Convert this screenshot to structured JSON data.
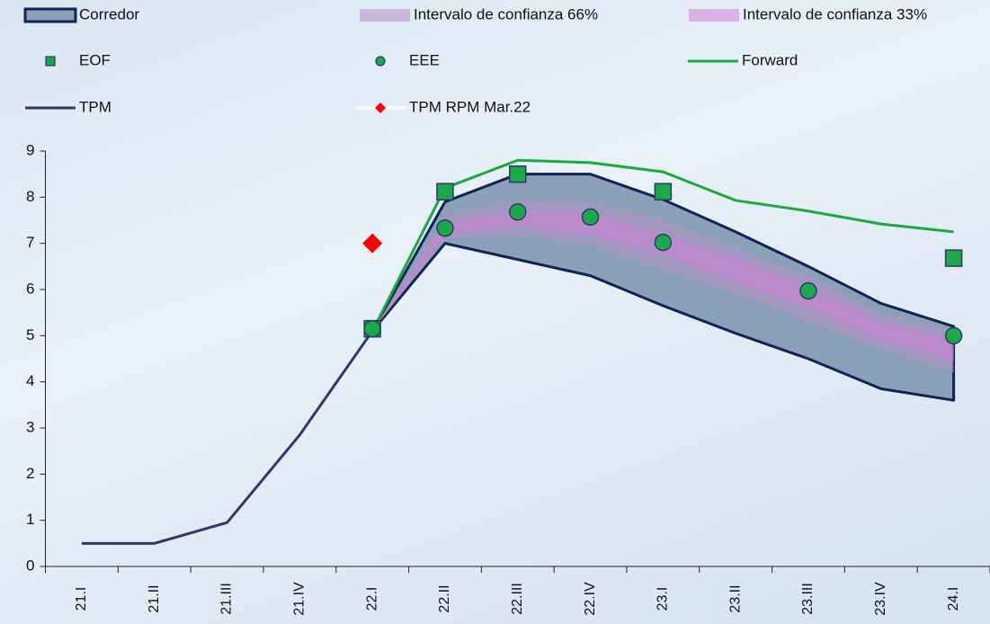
{
  "chart_data": {
    "type": "line",
    "categories": [
      "21.I",
      "21.II",
      "21.III",
      "21.IV",
      "22.I",
      "22.II",
      "22.III",
      "22.IV",
      "23.I",
      "23.II",
      "23.III",
      "23.IV",
      "24.I"
    ],
    "ylim": [
      0,
      9
    ],
    "yticks": [
      0,
      1,
      2,
      3,
      4,
      5,
      6,
      7,
      8,
      9
    ],
    "series": [
      {
        "name": "Corredor",
        "style": "band",
        "color": "#7f98b1",
        "stroke": "#0f2357",
        "values": [
          null,
          null,
          null,
          null,
          5.1,
          7.9,
          8.5,
          8.5,
          7.95,
          7.25,
          6.5,
          5.7,
          5.2
        ],
        "lower": [
          null,
          null,
          null,
          null,
          5.1,
          7.0,
          6.65,
          6.3,
          5.65,
          5.05,
          4.5,
          3.85,
          3.6
        ]
      },
      {
        "name": "Intervalo de confianza 66%",
        "style": "band",
        "color": "#b58fc6",
        "values": [
          null,
          null,
          null,
          null,
          5.1,
          7.6,
          7.95,
          7.9,
          7.5,
          6.9,
          6.3,
          5.5,
          5.1
        ],
        "lower": [
          null,
          null,
          null,
          null,
          5.1,
          7.1,
          7.2,
          6.95,
          6.45,
          5.9,
          5.3,
          4.7,
          4.2
        ]
      },
      {
        "name": "Intervalo de confianza 33%",
        "style": "band",
        "color": "#d17fd3",
        "values": [
          null,
          null,
          null,
          null,
          5.1,
          7.45,
          7.7,
          7.65,
          7.2,
          6.65,
          6.05,
          5.3,
          4.9
        ],
        "lower": [
          null,
          null,
          null,
          null,
          5.1,
          7.2,
          7.4,
          7.2,
          6.75,
          6.15,
          5.6,
          4.9,
          4.45
        ]
      },
      {
        "name": "Forward",
        "style": "line",
        "color": "#1aaa3c",
        "values": [
          null,
          null,
          null,
          null,
          5.1,
          8.2,
          8.8,
          8.75,
          8.55,
          7.93,
          7.7,
          7.42,
          7.25
        ]
      },
      {
        "name": "TPM",
        "style": "line",
        "color": "#2b3a6b",
        "values": [
          0.5,
          0.5,
          0.95,
          2.85,
          5.1,
          null,
          null,
          null,
          null,
          null,
          null,
          null,
          null
        ]
      },
      {
        "name": "EOF",
        "style": "square",
        "color": "#1aa84a",
        "values": [
          null,
          null,
          null,
          null,
          5.15,
          8.12,
          8.5,
          null,
          8.12,
          null,
          null,
          null,
          6.68
        ]
      },
      {
        "name": "EEE",
        "style": "circle",
        "color": "#1aa84a",
        "values": [
          null,
          null,
          null,
          null,
          5.15,
          7.33,
          7.68,
          7.57,
          7.02,
          null,
          5.97,
          null,
          5.0
        ]
      },
      {
        "name": "TPM RPM Mar.22",
        "style": "diamond",
        "color": "#ff0000",
        "values": [
          null,
          null,
          null,
          null,
          7.0,
          null,
          null,
          null,
          null,
          null,
          null,
          null,
          null
        ]
      }
    ]
  }
}
